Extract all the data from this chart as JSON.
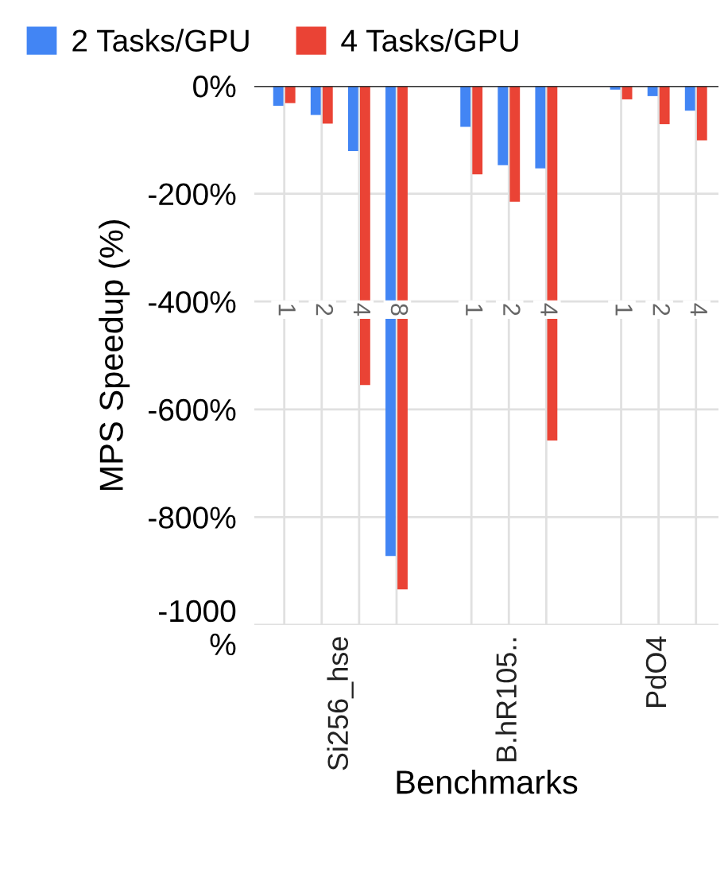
{
  "chart_data": {
    "type": "bar",
    "xlabel": "Benchmarks",
    "ylabel": "MPS Speedup (%)",
    "categories": [
      "1",
      "2",
      "4",
      "8",
      null,
      "1",
      "2",
      "4",
      null,
      "1",
      "2",
      "4"
    ],
    "series": [
      {
        "name": "2 Tasks/GPU",
        "color": "#4285f4",
        "values": [
          -37,
          -54,
          -121,
          -872,
          null,
          -76,
          -147,
          -153,
          null,
          -7,
          -19,
          -46
        ]
      },
      {
        "name": "4 Tasks/GPU",
        "color": "#ea4335",
        "values": [
          -32,
          -70,
          -555,
          -934,
          null,
          -164,
          -215,
          -658,
          null,
          -25,
          -71,
          -101
        ]
      }
    ],
    "annotations": [
      "Si256_hse",
      "B.hR105..",
      "PdO4"
    ],
    "ylim": [
      -1000,
      0
    ],
    "yticks": [
      {
        "value": 0,
        "label": "0%"
      },
      {
        "value": -200,
        "label": "-200%"
      },
      {
        "value": -400,
        "label": "-400%"
      },
      {
        "value": -600,
        "label": "-600%"
      },
      {
        "value": -800,
        "label": "-800%"
      },
      {
        "value": -1000,
        "label": "-1000\n%"
      }
    ],
    "grid": true,
    "legend": "top left"
  }
}
